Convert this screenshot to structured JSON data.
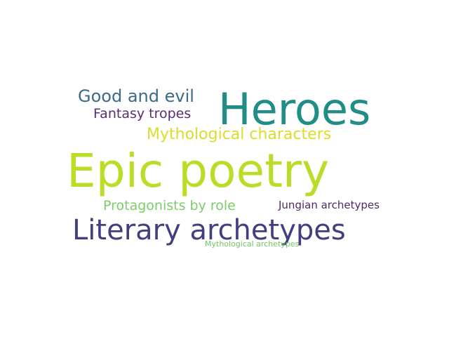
{
  "word_cloud": {
    "words": [
      {
        "text": "Heroes",
        "color": "#218d87"
      },
      {
        "text": "Epic poetry",
        "color": "#bade28"
      },
      {
        "text": "Literary archetypes",
        "color": "#413f7f"
      },
      {
        "text": "Good and evil",
        "color": "#3b6a8b"
      },
      {
        "text": "Fantasy tropes",
        "color": "#5b2d72"
      },
      {
        "text": "Mythological characters",
        "color": "#dcdc2e"
      },
      {
        "text": "Protagonists by role",
        "color": "#7ccd6a"
      },
      {
        "text": "Jungian archetypes",
        "color": "#4f2a64"
      },
      {
        "text": "Mythological archetypes",
        "color": "#6dc95e"
      }
    ]
  }
}
